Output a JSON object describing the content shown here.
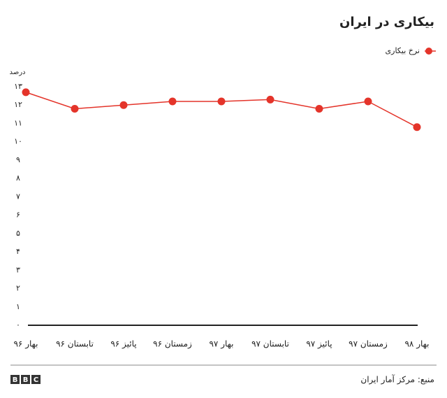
{
  "chart_data": {
    "type": "line",
    "title": "بیکاری در ایران",
    "y_label": "درصد",
    "categories": [
      "بهار ۹۶",
      "تابستان ۹۶",
      "پائیز ۹۶",
      "زمستان ۹۶",
      "بهار ۹۷",
      "تابستان ۹۷",
      "پائیز ۹۷",
      "زمستان ۹۷",
      "بهار ۹۸"
    ],
    "series": [
      {
        "name": "نرخ بیکاری",
        "color": "#e4342a",
        "values": [
          12.7,
          11.8,
          12.0,
          12.2,
          12.2,
          12.3,
          11.8,
          12.2,
          10.8
        ]
      }
    ],
    "ylim": [
      0,
      13
    ],
    "yticks": [
      {
        "value": 0,
        "label": "۰"
      },
      {
        "value": 1,
        "label": "۱"
      },
      {
        "value": 2,
        "label": "۲"
      },
      {
        "value": 3,
        "label": "۳"
      },
      {
        "value": 4,
        "label": "۴"
      },
      {
        "value": 5,
        "label": "۵"
      },
      {
        "value": 6,
        "label": "۶"
      },
      {
        "value": 7,
        "label": "۷"
      },
      {
        "value": 8,
        "label": "۸"
      },
      {
        "value": 9,
        "label": "۹"
      },
      {
        "value": 10,
        "label": "۱۰"
      },
      {
        "value": 11,
        "label": "۱۱"
      },
      {
        "value": 12,
        "label": "۱۲"
      },
      {
        "value": 13,
        "label": "۱۳"
      }
    ],
    "grid": false,
    "legend": "top-right",
    "source": "منبع: مرکز آمار ایران",
    "logo": [
      "B",
      "B",
      "C"
    ]
  }
}
